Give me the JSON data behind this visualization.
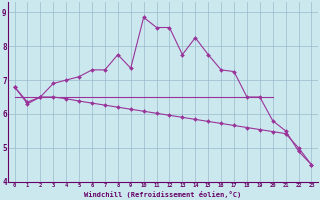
{
  "xlabel": "Windchill (Refroidissement éolien,°C)",
  "bg_color": "#cce8ef",
  "line_color": "#993399",
  "grid_color": "#99bbcc",
  "axis_color": "#660066",
  "text_color": "#660066",
  "xlim": [
    -0.5,
    23.5
  ],
  "ylim": [
    4,
    9.3
  ],
  "xticks": [
    0,
    1,
    2,
    3,
    4,
    5,
    6,
    7,
    8,
    9,
    10,
    11,
    12,
    13,
    14,
    15,
    16,
    17,
    18,
    19,
    20,
    21,
    22,
    23
  ],
  "yticks": [
    4,
    5,
    6,
    7,
    8,
    9
  ],
  "curve1_x": [
    0,
    1,
    2,
    3,
    4,
    5,
    6,
    7,
    8,
    9,
    10,
    11,
    12,
    13,
    14,
    15,
    16,
    17,
    18,
    19,
    20,
    21,
    22,
    23
  ],
  "curve1_y": [
    6.8,
    6.3,
    6.5,
    6.9,
    7.0,
    7.1,
    7.3,
    7.3,
    7.75,
    7.35,
    8.85,
    8.55,
    8.55,
    7.75,
    8.25,
    7.75,
    7.3,
    7.25,
    6.5,
    6.5,
    5.8,
    5.5,
    4.9,
    4.5
  ],
  "curve2_x": [
    0,
    1,
    2,
    3,
    4,
    5,
    6,
    7,
    8,
    9,
    10,
    11,
    12,
    13,
    14,
    15,
    16,
    17,
    18,
    19,
    20,
    21,
    22,
    23
  ],
  "curve2_y": [
    6.8,
    6.35,
    6.5,
    6.5,
    6.45,
    6.38,
    6.32,
    6.26,
    6.2,
    6.14,
    6.08,
    6.02,
    5.96,
    5.9,
    5.84,
    5.78,
    5.72,
    5.66,
    5.6,
    5.54,
    5.48,
    5.42,
    5.0,
    4.5
  ],
  "curve3_x": [
    0,
    20
  ],
  "curve3_y": [
    6.5,
    6.5
  ],
  "marker": "D",
  "marker_size": 2.0,
  "line_width": 0.8
}
